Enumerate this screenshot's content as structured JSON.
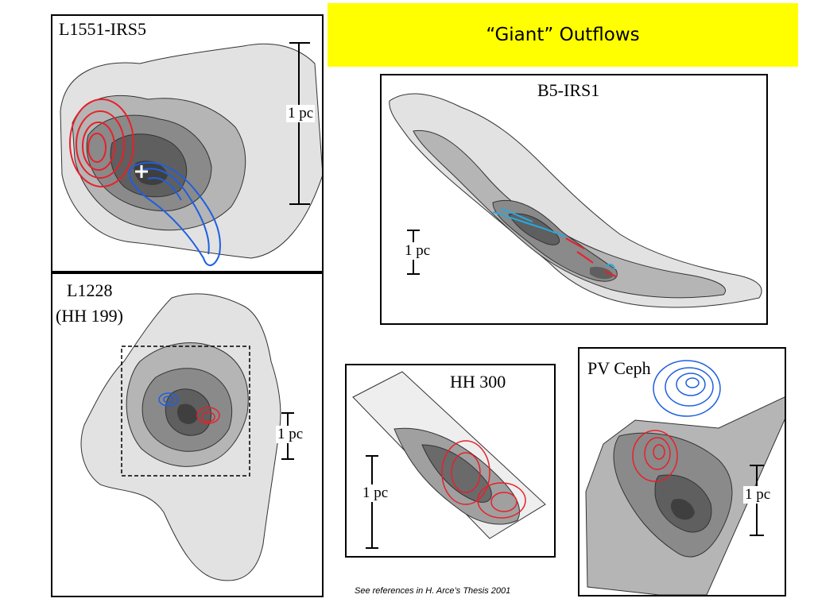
{
  "slide": {
    "title": "“Giant”  Outflows",
    "title_bg": "#ffff00",
    "footnote": "See references in H. Arce’s Thesis 2001"
  },
  "panels": {
    "l1551": {
      "name": "L1551-IRS5",
      "scale": "1 pc"
    },
    "b5": {
      "name": "B5-IRS1",
      "scale": "1 pc"
    },
    "l1228": {
      "name_line1": "L1228",
      "name_line2": "(HH 199)",
      "scale": "1 pc"
    },
    "hh300": {
      "name": "HH 300",
      "scale": "1 pc"
    },
    "pvceph": {
      "name": "PV Ceph",
      "scale": "1 pc"
    }
  },
  "colors": {
    "redshifted_lobe": "#e8202a",
    "blueshifted_lobe": "#1f5fe0",
    "cloud_light": "#e2e2e2",
    "cloud_mid": "#b5b5b5",
    "cloud_dark": "#8a8a8a",
    "cloud_darker": "#5f5f5f",
    "cloud_core": "#3f3f3f"
  }
}
